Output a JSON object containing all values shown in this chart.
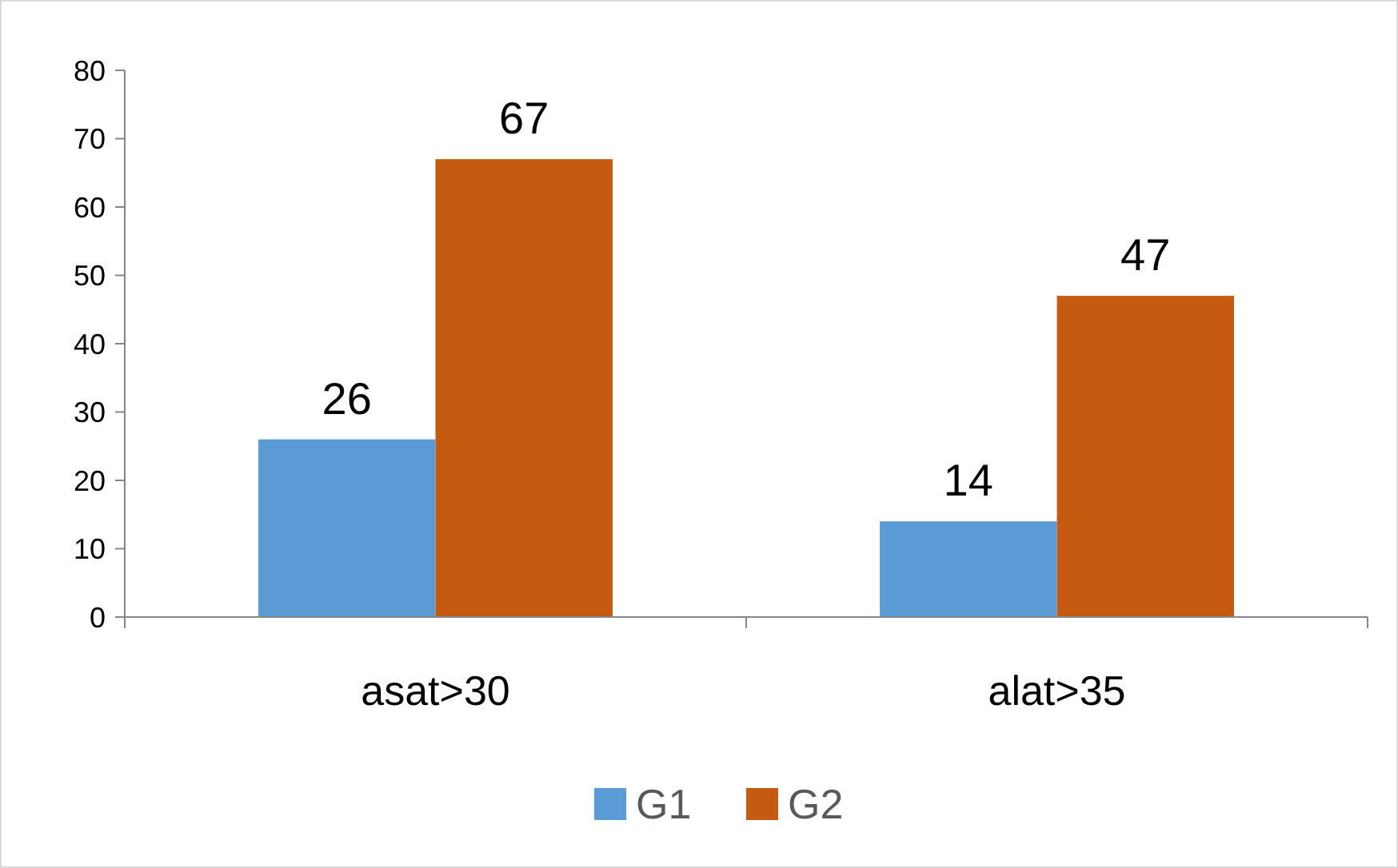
{
  "chart_data": {
    "type": "bar",
    "categories": [
      "asat>30",
      "alat>35"
    ],
    "series": [
      {
        "name": "G1",
        "color": "#5b9bd5",
        "values": [
          26,
          14
        ]
      },
      {
        "name": "G2",
        "color": "#c55a11",
        "values": [
          67,
          47
        ]
      }
    ],
    "ylim": [
      0,
      80
    ],
    "yticks": [
      0,
      10,
      20,
      30,
      40,
      50,
      60,
      70,
      80
    ],
    "grid": false,
    "legend": "bottom",
    "data_labels": true
  }
}
